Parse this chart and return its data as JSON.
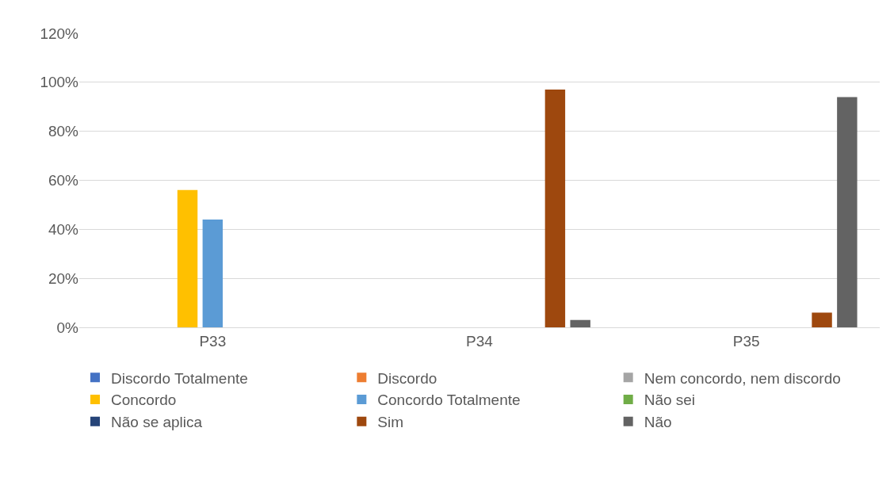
{
  "chart_data": {
    "type": "bar",
    "categories": [
      "P33",
      "P34",
      "P35"
    ],
    "series": [
      {
        "name": "Discordo Totalmente",
        "color": "#4472c4",
        "values": [
          0,
          0,
          0
        ]
      },
      {
        "name": "Discordo",
        "color": "#ed7d31",
        "values": [
          0,
          0,
          0
        ]
      },
      {
        "name": "Nem concordo, nem discordo",
        "color": "#a5a5a5",
        "values": [
          0,
          0,
          0
        ]
      },
      {
        "name": "Concordo",
        "color": "#ffc000",
        "values": [
          56,
          0,
          0
        ]
      },
      {
        "name": "Concordo Totalmente",
        "color": "#5b9bd5",
        "values": [
          44,
          0,
          0
        ]
      },
      {
        "name": "Não sei",
        "color": "#70ad47",
        "values": [
          0,
          0,
          0
        ]
      },
      {
        "name": "Não se aplica",
        "color": "#264478",
        "values": [
          0,
          0,
          0
        ]
      },
      {
        "name": "Sim",
        "color": "#9e480e",
        "values": [
          0,
          97,
          6
        ]
      },
      {
        "name": "Não",
        "color": "#636363",
        "values": [
          0,
          3,
          94
        ]
      }
    ],
    "ylim": [
      0,
      120
    ],
    "yticks": [
      {
        "value": 0,
        "label": "0%"
      },
      {
        "value": 20,
        "label": "20%"
      },
      {
        "value": 40,
        "label": "40%"
      },
      {
        "value": 60,
        "label": "60%"
      },
      {
        "value": 80,
        "label": "80%"
      },
      {
        "value": 100,
        "label": "100%"
      },
      {
        "value": 120,
        "label": "120%"
      }
    ],
    "grid": "y",
    "legend": "bottom"
  }
}
